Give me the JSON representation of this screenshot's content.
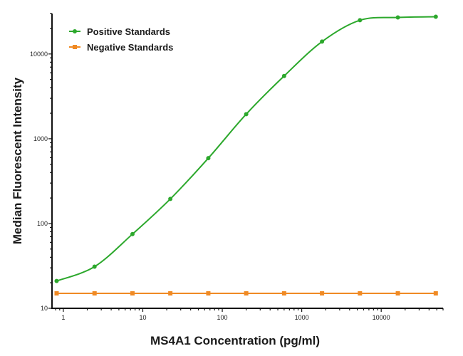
{
  "chart_data": {
    "type": "line",
    "title": "",
    "xlabel": "MS4A1 Concentration (pg/ml)",
    "ylabel": "Median Fluorescent Intensity",
    "xscale": "log",
    "yscale": "log",
    "xlim": [
      0.72,
      60000
    ],
    "ylim": [
      10,
      30000
    ],
    "xticks": [
      "1",
      "10",
      "100",
      "1000",
      "10000"
    ],
    "yticks": [
      "10",
      "100",
      "1000",
      "10000"
    ],
    "grid": false,
    "legend_position": "top-left",
    "x": [
      0.823,
      2.47,
      7.41,
      22.2,
      66.7,
      200,
      600,
      1800,
      5400,
      16200,
      48600
    ],
    "series": [
      {
        "name": "Positive Standards",
        "color": "#2ca82c",
        "marker": "circle",
        "curve": "smooth fit",
        "values": [
          21,
          31,
          75,
          195,
          590,
          1950,
          5500,
          14000,
          25000,
          27000,
          27500
        ]
      },
      {
        "name": "Negative Standards",
        "color": "#f08a24",
        "marker": "square",
        "curve": "straight",
        "values": [
          15,
          15,
          15,
          15,
          15,
          15,
          15,
          15,
          15,
          15,
          15
        ]
      }
    ]
  }
}
